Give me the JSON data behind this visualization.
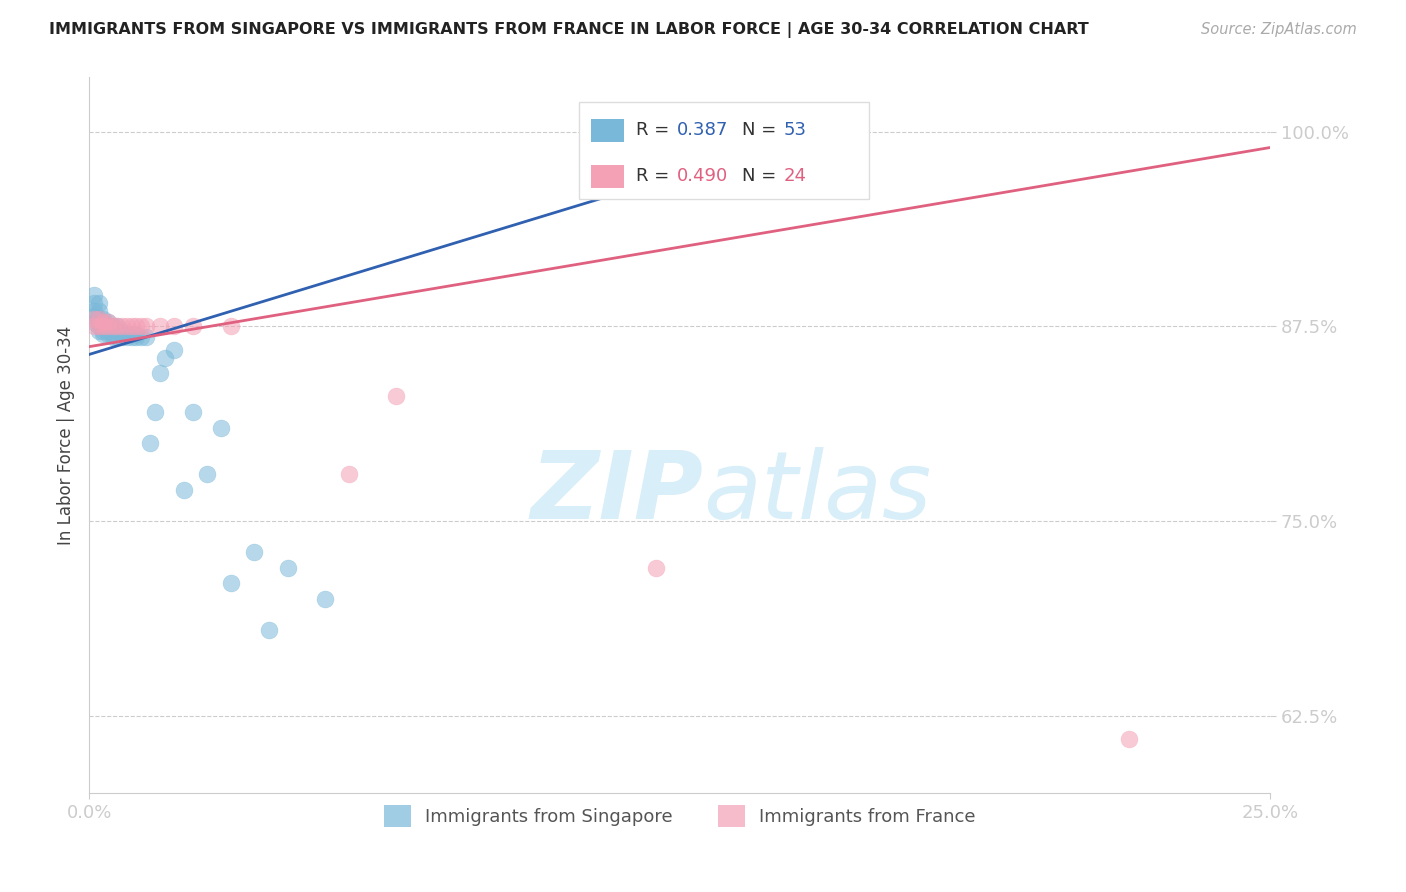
{
  "title": "IMMIGRANTS FROM SINGAPORE VS IMMIGRANTS FROM FRANCE IN LABOR FORCE | AGE 30-34 CORRELATION CHART",
  "source": "Source: ZipAtlas.com",
  "ylabel": "In Labor Force | Age 30-34",
  "legend_blue_r": "0.387",
  "legend_blue_n": "53",
  "legend_pink_r": "0.490",
  "legend_pink_n": "24",
  "legend_label_blue": "Immigrants from Singapore",
  "legend_label_pink": "Immigrants from France",
  "blue_color": "#7ab8d9",
  "pink_color": "#f4a0b5",
  "blue_line_color": "#3060b0",
  "pink_line_color": "#e06080",
  "watermark_zip": "ZIP",
  "watermark_atlas": "atlas",
  "watermark_color": "#d8eef8",
  "xlim": [
    0.0,
    0.25
  ],
  "ylim": [
    0.575,
    1.035
  ],
  "xtick_values": [
    0.0,
    0.25
  ],
  "xtick_labels": [
    "0.0%",
    "25.0%"
  ],
  "ytick_values": [
    0.625,
    0.75,
    0.875,
    1.0
  ],
  "ytick_labels": [
    "62.5%",
    "75.0%",
    "87.5%",
    "100.0%"
  ],
  "singapore_x": [
    0.001,
    0.001,
    0.001,
    0.001,
    0.001,
    0.002,
    0.002,
    0.002,
    0.002,
    0.002,
    0.002,
    0.003,
    0.003,
    0.003,
    0.003,
    0.003,
    0.004,
    0.004,
    0.004,
    0.004,
    0.005,
    0.005,
    0.005,
    0.005,
    0.006,
    0.006,
    0.006,
    0.007,
    0.007,
    0.007,
    0.008,
    0.008,
    0.009,
    0.009,
    0.01,
    0.01,
    0.011,
    0.012,
    0.013,
    0.014,
    0.015,
    0.016,
    0.018,
    0.02,
    0.022,
    0.025,
    0.028,
    0.03,
    0.035,
    0.038,
    0.042,
    0.05,
    0.16
  ],
  "singapore_y": [
    0.878,
    0.882,
    0.885,
    0.89,
    0.895,
    0.872,
    0.875,
    0.878,
    0.88,
    0.885,
    0.89,
    0.87,
    0.872,
    0.875,
    0.878,
    0.88,
    0.87,
    0.872,
    0.875,
    0.878,
    0.868,
    0.87,
    0.873,
    0.875,
    0.868,
    0.872,
    0.875,
    0.868,
    0.87,
    0.872,
    0.868,
    0.87,
    0.868,
    0.87,
    0.868,
    0.87,
    0.868,
    0.868,
    0.8,
    0.82,
    0.845,
    0.855,
    0.86,
    0.77,
    0.82,
    0.78,
    0.81,
    0.71,
    0.73,
    0.68,
    0.72,
    0.7,
    1.0
  ],
  "france_x": [
    0.001,
    0.001,
    0.002,
    0.002,
    0.003,
    0.003,
    0.004,
    0.004,
    0.005,
    0.006,
    0.007,
    0.008,
    0.009,
    0.01,
    0.011,
    0.012,
    0.015,
    0.018,
    0.022,
    0.03,
    0.055,
    0.065,
    0.12,
    0.22
  ],
  "france_y": [
    0.875,
    0.88,
    0.875,
    0.88,
    0.875,
    0.878,
    0.875,
    0.878,
    0.875,
    0.875,
    0.875,
    0.875,
    0.875,
    0.875,
    0.875,
    0.875,
    0.875,
    0.875,
    0.875,
    0.875,
    0.78,
    0.83,
    0.72,
    0.61
  ],
  "trend_blue_x0": 0.0,
  "trend_blue_x1": 0.16,
  "trend_blue_y0": 0.857,
  "trend_blue_y1": 1.005,
  "trend_pink_x0": 0.0,
  "trend_pink_x1": 0.25,
  "trend_pink_y0": 0.862,
  "trend_pink_y1": 0.99
}
